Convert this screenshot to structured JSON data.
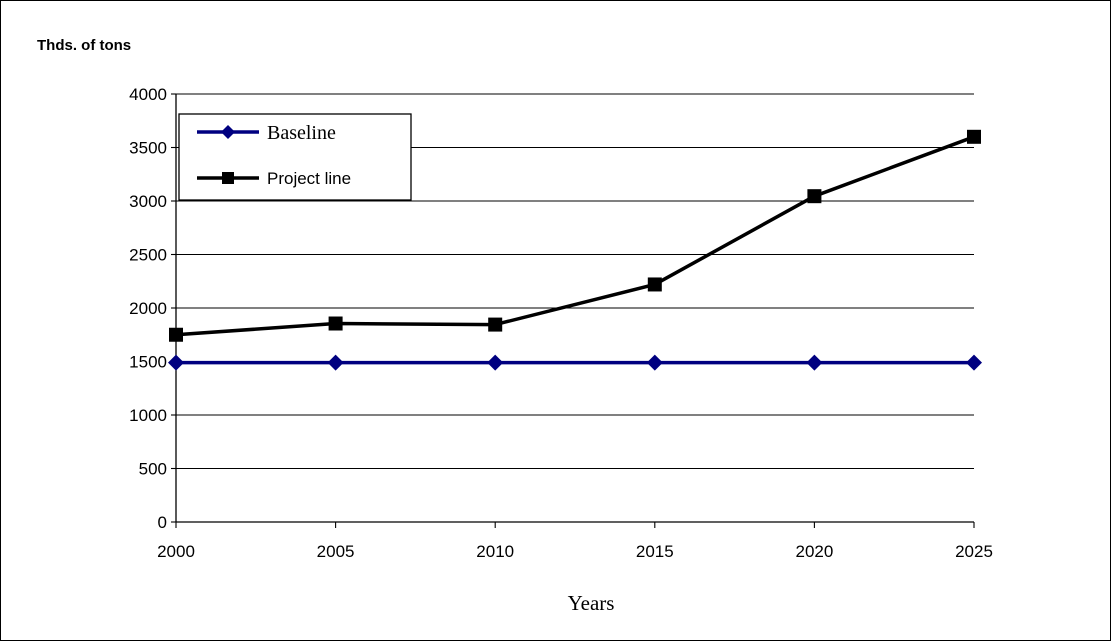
{
  "chart_data": {
    "type": "line",
    "ylabel": "Thds. of tons",
    "xlabel": "Years",
    "x": [
      2000,
      2005,
      2010,
      2015,
      2020,
      2025
    ],
    "ylim": [
      0,
      4000
    ],
    "yticks": [
      0,
      500,
      1000,
      1500,
      2000,
      2500,
      3000,
      3500,
      4000
    ],
    "grid": true,
    "legend_position": "top-left",
    "series": [
      {
        "name": "Baseline",
        "values": [
          1490,
          1490,
          1490,
          1490,
          1490,
          1490
        ],
        "color": "#000080",
        "marker": "diamond"
      },
      {
        "name": "Project line",
        "values": [
          1750,
          1855,
          1845,
          2220,
          3045,
          3600
        ],
        "color": "#000000",
        "marker": "square"
      }
    ]
  }
}
